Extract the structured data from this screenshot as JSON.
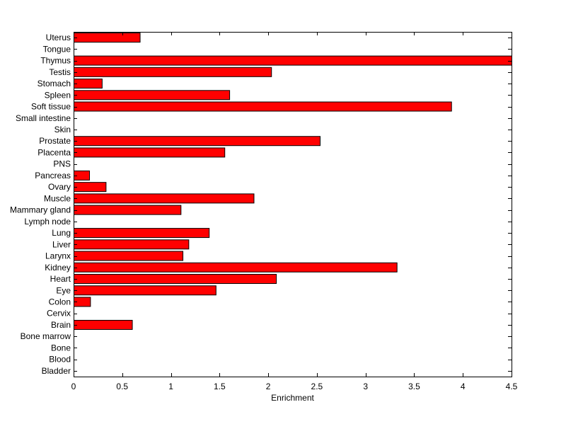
{
  "chart_data": {
    "type": "bar",
    "orientation": "horizontal",
    "title": "",
    "xlabel": "Enrichment",
    "ylabel": "",
    "xlim": [
      0,
      4.5
    ],
    "xticks": [
      0,
      0.5,
      1,
      1.5,
      2,
      2.5,
      3,
      3.5,
      4,
      4.5
    ],
    "xtick_labels": [
      "0",
      "0.5",
      "1",
      "1.5",
      "2",
      "2.5",
      "3",
      "3.5",
      "4",
      "4.5"
    ],
    "grid": false,
    "legend": "none",
    "bar_color": "#ff0000",
    "bar_edge_color": "#000000",
    "categories": [
      "Uterus",
      "Tongue",
      "Thymus",
      "Testis",
      "Stomach",
      "Spleen",
      "Soft tissue",
      "Small intestine",
      "Skin",
      "Prostate",
      "Placenta",
      "PNS",
      "Pancreas",
      "Ovary",
      "Muscle",
      "Mammary gland",
      "Lymph node",
      "Lung",
      "Liver",
      "Larynx",
      "Kidney",
      "Heart",
      "Eye",
      "Colon",
      "Cervix",
      "Brain",
      "Bone marrow",
      "Bone",
      "Blood",
      "Bladder"
    ],
    "values": [
      0.68,
      0,
      4.5,
      2.03,
      0.29,
      1.6,
      3.88,
      0,
      0,
      2.53,
      1.55,
      0,
      0.16,
      0.33,
      1.85,
      1.1,
      0,
      1.39,
      1.18,
      1.12,
      3.32,
      2.08,
      1.46,
      0.17,
      0,
      0.6,
      0,
      0,
      0,
      0
    ]
  }
}
